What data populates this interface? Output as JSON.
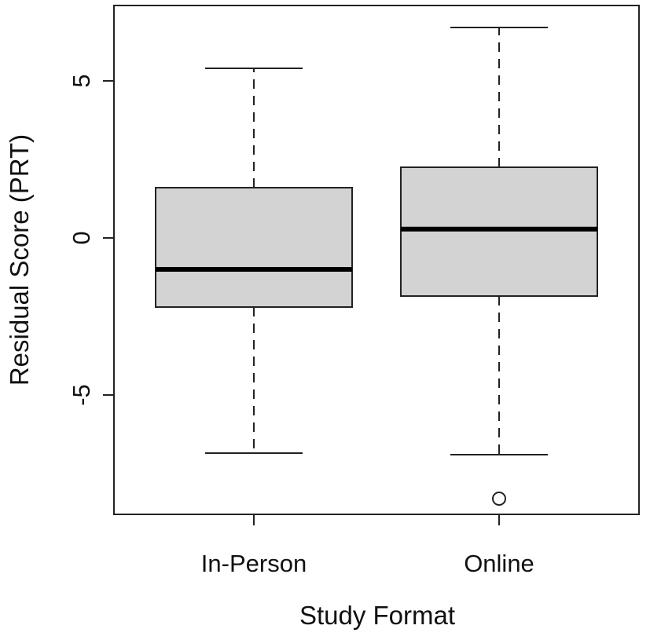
{
  "chart_data": {
    "type": "boxplot",
    "xlabel": "Study Format",
    "ylabel": "Residual Score (PRT)",
    "categories": [
      "In-Person",
      "Online"
    ],
    "ylim": [
      -8.8,
      7.4
    ],
    "yticks": [
      -5,
      0,
      5
    ],
    "ytick_labels": [
      "-5",
      "0",
      "5"
    ],
    "grid": false,
    "legend": "none",
    "box_fill": "#d3d3d3",
    "boxes": [
      {
        "category": "In-Person",
        "whisker_low": -6.85,
        "q1": -2.2,
        "median": -1.0,
        "q3": 1.6,
        "whisker_high": 5.4,
        "outliers": []
      },
      {
        "category": "Online",
        "whisker_low": -6.9,
        "q1": -1.85,
        "median": 0.28,
        "q3": 2.25,
        "whisker_high": 6.7,
        "outliers": [
          -8.3
        ]
      }
    ]
  }
}
